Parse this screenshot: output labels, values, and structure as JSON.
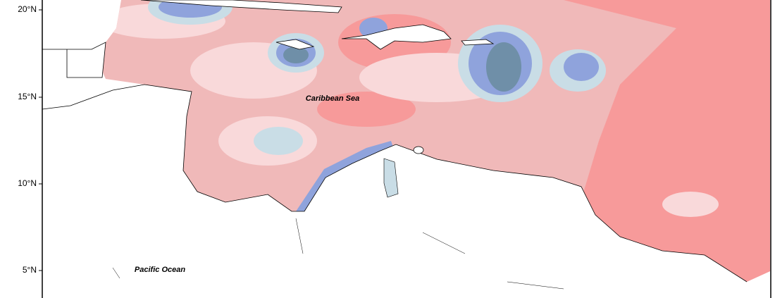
{
  "map": {
    "lat_labels": [
      "20°N",
      "15°N",
      "10°N",
      "5°N"
    ],
    "places": {
      "caribbean": "Caribbean Sea",
      "pacific": "Pacific Ocean"
    }
  }
}
